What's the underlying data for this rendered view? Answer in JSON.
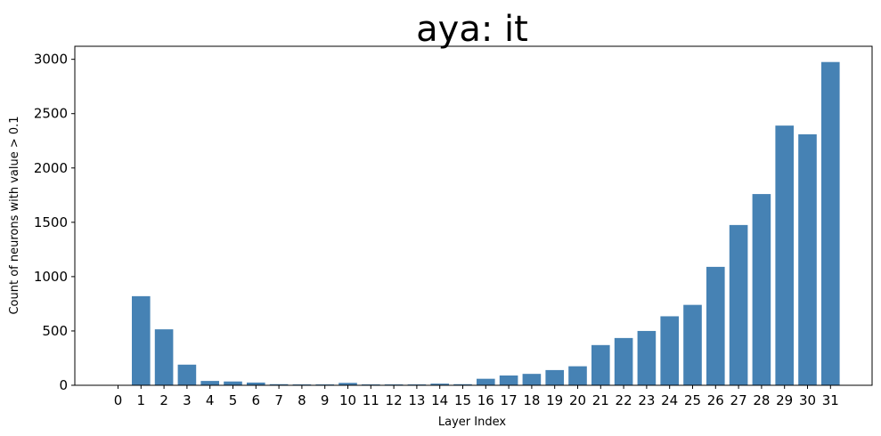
{
  "chart_data": {
    "type": "bar",
    "title": "aya: it",
    "xlabel": "Layer Index",
    "ylabel": "Count of neurons with value > 0.1",
    "categories": [
      "0",
      "1",
      "2",
      "3",
      "4",
      "5",
      "6",
      "7",
      "8",
      "9",
      "10",
      "11",
      "12",
      "13",
      "14",
      "15",
      "16",
      "17",
      "18",
      "19",
      "20",
      "21",
      "22",
      "23",
      "24",
      "25",
      "26",
      "27",
      "28",
      "29",
      "30",
      "31"
    ],
    "values": [
      0,
      820,
      515,
      190,
      40,
      35,
      25,
      10,
      8,
      8,
      22,
      8,
      8,
      8,
      15,
      10,
      60,
      90,
      105,
      140,
      175,
      370,
      435,
      500,
      635,
      740,
      1090,
      1475,
      1760,
      2390,
      2310,
      2975
    ],
    "ylim": [
      0,
      3120
    ],
    "yticks": [
      0,
      500,
      1000,
      1500,
      2000,
      2500,
      3000
    ],
    "bar_color": "#4682b4",
    "grid": false
  }
}
